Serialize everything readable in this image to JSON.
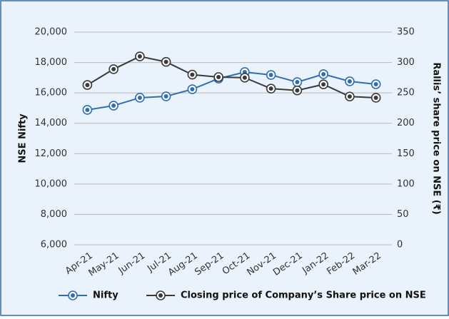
{
  "chart_data": {
    "type": "line",
    "categories": [
      "Apr-21",
      "May-21",
      "Jun-21",
      "Jul-21",
      "Aug-21",
      "Sep-21",
      "Oct-21",
      "Nov-21",
      "Dec-21",
      "Jan-22",
      "Feb-22",
      "Mar-22"
    ],
    "series": [
      {
        "name": "Nifty",
        "color": "#2f6db5",
        "values": [
          14880,
          15160,
          15680,
          15770,
          16240,
          16940,
          17370,
          17180,
          16710,
          17230,
          16760,
          16570
        ]
      },
      {
        "name": "Closing price of Company’s Share price on NSE",
        "color": "#3a3a3a",
        "axis": "y2",
        "values": [
          263,
          289,
          310,
          301,
          280,
          276,
          275,
          257,
          254,
          264,
          244,
          242
        ]
      }
    ],
    "ylabel": "NSE Nifty",
    "y2label": "Rallis’ share price on NSE (₹)",
    "ylim": [
      6000,
      20000
    ],
    "yticks": [
      {
        "value": 6000,
        "label": "6,000"
      },
      {
        "value": 8000,
        "label": "8,000"
      },
      {
        "value": 10000,
        "label": "10,000"
      },
      {
        "value": 12000,
        "label": "12,000"
      },
      {
        "value": 14000,
        "label": "14,000"
      },
      {
        "value": 16000,
        "label": "16,000"
      },
      {
        "value": 18000,
        "label": "18,000"
      },
      {
        "value": 20000,
        "label": "20,000"
      }
    ],
    "y2lim": [
      0,
      350
    ],
    "y2ticks": [
      0,
      50,
      100,
      150,
      200,
      250,
      300,
      350
    ],
    "grid": true,
    "legend": "bottom"
  }
}
